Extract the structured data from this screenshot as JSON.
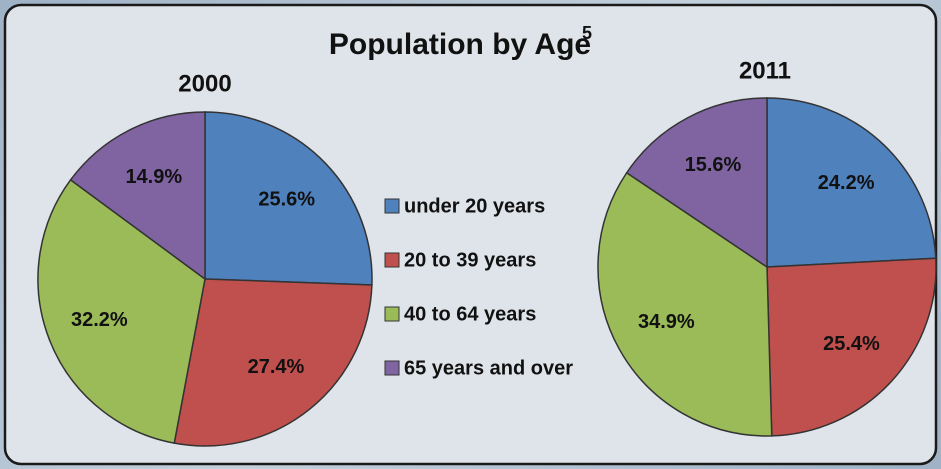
{
  "title": "Population by Age",
  "title_note": "5",
  "chart_data": [
    {
      "type": "pie",
      "title": "2000",
      "categories": [
        "under 20 years",
        "20 to 39 years",
        "40 to 64 years",
        "65 years and over"
      ],
      "values": [
        25.6,
        27.4,
        32.2,
        14.9
      ],
      "value_labels": [
        "25.6%",
        "27.4%",
        "32.2%",
        "14.9%"
      ],
      "colors": [
        "#4f81bd",
        "#c0504d",
        "#9bbb59",
        "#8064a2"
      ]
    },
    {
      "type": "pie",
      "title": "2011",
      "categories": [
        "under 20 years",
        "20 to 39 years",
        "40 to 64 years",
        "65 years and over"
      ],
      "values": [
        24.2,
        25.4,
        34.9,
        15.6
      ],
      "value_labels": [
        "24.2%",
        "25.4%",
        "34.9%",
        "15.6%"
      ],
      "colors": [
        "#4f81bd",
        "#c0504d",
        "#9bbb59",
        "#8064a2"
      ]
    }
  ]
}
